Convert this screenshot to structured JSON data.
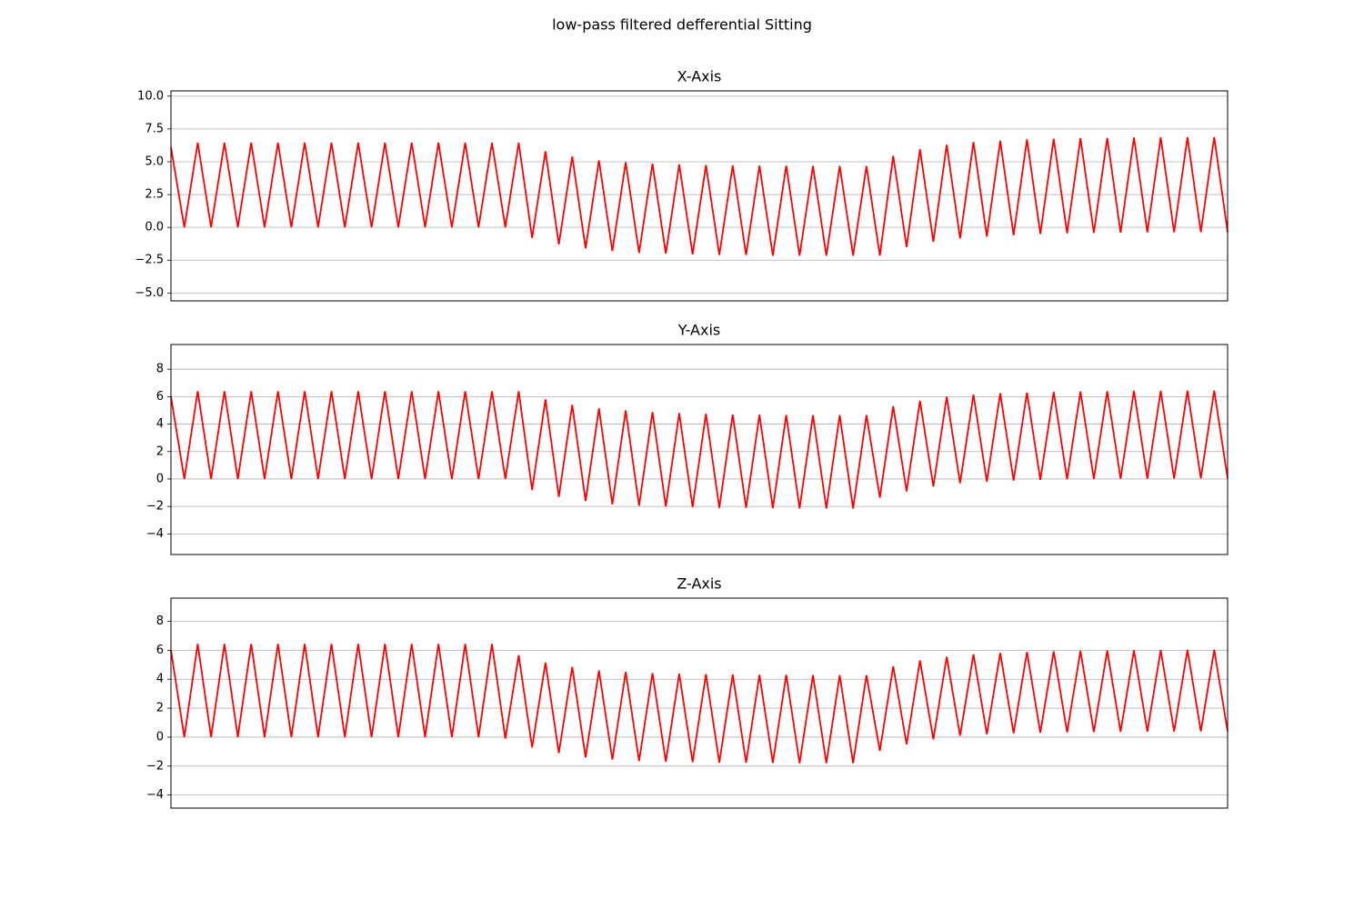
{
  "title": "low-pass filtered defferential Sitting",
  "chart_data": [
    {
      "type": "line",
      "title": "X-Axis",
      "ylim": [
        -5.6,
        10.4
      ],
      "yticks": [
        {
          "value": -5,
          "label": "−5.0"
        },
        {
          "value": -2.5,
          "label": "−2.5"
        },
        {
          "value": 0,
          "label": "0.0"
        },
        2.5,
        {
          "value": 5,
          "label": "5.0"
        },
        7.5,
        {
          "value": 10,
          "label": "10.0"
        }
      ],
      "grid": true,
      "series": [
        {
          "color": "#ff0000",
          "values": [
            6.1,
            0,
            6.45,
            0,
            6.45,
            0,
            6.45,
            0,
            6.45,
            0,
            6.45,
            0,
            6.45,
            0,
            6.45,
            0,
            6.45,
            0,
            6.45,
            0,
            6.45,
            0,
            6.45,
            0,
            6.45,
            0,
            6.45,
            -0.8,
            5.8,
            -1.3,
            5.4,
            -1.6,
            5.1,
            -1.8,
            4.95,
            -1.95,
            4.85,
            -2.0,
            4.8,
            -2.05,
            4.75,
            -2.1,
            4.72,
            -2.1,
            4.7,
            -2.15,
            4.7,
            -2.15,
            4.68,
            -2.15,
            4.68,
            -2.15,
            4.68,
            -2.15,
            5.45,
            -1.5,
            5.95,
            -1.1,
            6.3,
            -0.85,
            6.5,
            -0.7,
            6.6,
            -0.6,
            6.7,
            -0.5,
            6.75,
            -0.45,
            6.8,
            -0.42,
            6.82,
            -0.4,
            6.85,
            -0.38,
            6.86,
            -0.37,
            6.87,
            -0.36,
            6.88,
            -0.35
          ]
        }
      ]
    },
    {
      "type": "line",
      "title": "Y-Axis",
      "ylim": [
        -5.5,
        9.8
      ],
      "yticks": [
        {
          "value": -4,
          "label": "−4"
        },
        {
          "value": -2,
          "label": "−2"
        },
        0,
        2,
        4,
        6,
        8
      ],
      "grid": true,
      "series": [
        {
          "color": "#ff0000",
          "values": [
            6.0,
            0,
            6.4,
            0,
            6.4,
            0,
            6.4,
            0,
            6.4,
            0,
            6.4,
            0,
            6.4,
            0,
            6.4,
            0,
            6.4,
            0,
            6.4,
            0,
            6.4,
            0,
            6.4,
            0,
            6.4,
            0,
            6.4,
            -0.8,
            5.8,
            -1.3,
            5.4,
            -1.6,
            5.15,
            -1.85,
            5.0,
            -1.95,
            4.88,
            -2.0,
            4.8,
            -2.05,
            4.75,
            -2.1,
            4.7,
            -2.1,
            4.68,
            -2.12,
            4.66,
            -2.14,
            4.65,
            -2.15,
            4.65,
            -2.15,
            4.65,
            -1.35,
            5.3,
            -0.9,
            5.7,
            -0.55,
            6.0,
            -0.3,
            6.15,
            -0.2,
            6.25,
            -0.12,
            6.3,
            -0.06,
            6.35,
            -0.02,
            6.38,
            0,
            6.4,
            0.02,
            6.42,
            0.03,
            6.43,
            0.04,
            6.44,
            0.05,
            6.45,
            0.05
          ]
        }
      ]
    },
    {
      "type": "line",
      "title": "Z-Axis",
      "ylim": [
        -4.9,
        9.6
      ],
      "yticks": [
        {
          "value": -4,
          "label": "−4"
        },
        {
          "value": -2,
          "label": "−2"
        },
        0,
        2,
        4,
        6,
        8
      ],
      "grid": true,
      "series": [
        {
          "color": "#ff0000",
          "values": [
            6.0,
            0,
            6.44,
            0,
            6.44,
            0,
            6.44,
            0,
            6.44,
            0,
            6.44,
            0,
            6.44,
            0,
            6.44,
            0,
            6.44,
            0,
            6.44,
            0,
            6.44,
            0,
            6.44,
            0,
            6.44,
            -0.1,
            5.65,
            -0.7,
            5.15,
            -1.1,
            4.85,
            -1.4,
            4.6,
            -1.55,
            4.5,
            -1.65,
            4.42,
            -1.7,
            4.38,
            -1.72,
            4.35,
            -1.75,
            4.32,
            -1.76,
            4.3,
            -1.78,
            4.3,
            -1.8,
            4.28,
            -1.8,
            4.28,
            -1.8,
            4.28,
            -0.95,
            4.9,
            -0.5,
            5.3,
            -0.15,
            5.55,
            0.1,
            5.72,
            0.2,
            5.82,
            0.27,
            5.88,
            0.3,
            5.93,
            0.33,
            5.96,
            0.35,
            5.98,
            0.37,
            6.0,
            0.38,
            6.02,
            0.39,
            6.03,
            0.4,
            6.04,
            0.4
          ]
        }
      ]
    }
  ]
}
